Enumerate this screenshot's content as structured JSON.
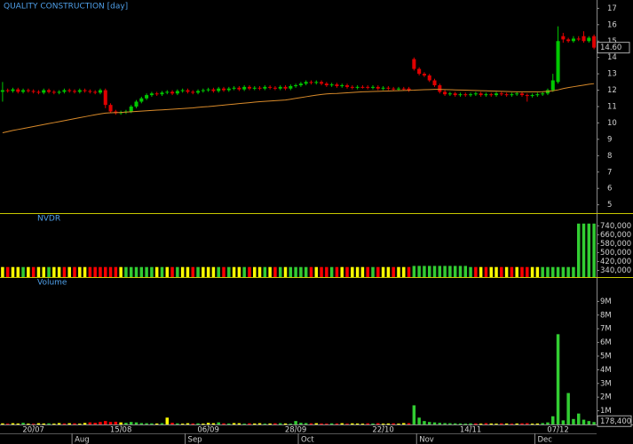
{
  "chart_data": [
    {
      "type": "candlestick",
      "title": "QUALITY CONSTRUCTION [day]",
      "up_color": "#00c800",
      "down_color": "#e00000",
      "ma_color": "#d88a2a",
      "ylim": [
        4.6,
        17.4
      ],
      "yticks": [
        5,
        6,
        7,
        8,
        9,
        10,
        11,
        12,
        13,
        14,
        15,
        16,
        17
      ],
      "price_marker": {
        "value": 14.6,
        "label": "14.60"
      },
      "open": [
        11.9,
        12.0,
        11.95,
        12.05,
        11.9,
        12.0,
        11.95,
        11.9,
        11.85,
        12.0,
        11.9,
        11.85,
        11.9,
        12.0,
        11.95,
        11.9,
        12.0,
        11.95,
        11.9,
        11.85,
        12.0,
        11.1,
        10.7,
        10.6,
        10.65,
        10.7,
        11.0,
        11.3,
        11.5,
        11.7,
        11.8,
        11.75,
        11.85,
        11.9,
        11.8,
        11.95,
        12.0,
        11.9,
        11.85,
        11.95,
        12.0,
        12.05,
        11.95,
        12.1,
        12.0,
        12.1,
        12.15,
        12.05,
        12.2,
        12.1,
        12.15,
        12.1,
        12.2,
        12.15,
        12.1,
        12.2,
        12.1,
        12.25,
        12.3,
        12.4,
        12.5,
        12.45,
        12.5,
        12.4,
        12.3,
        12.35,
        12.25,
        12.3,
        12.2,
        12.15,
        12.2,
        12.2,
        12.15,
        12.2,
        12.1,
        12.15,
        12.1,
        12.05,
        12.1,
        12.1,
        13.9,
        13.3,
        13.0,
        12.9,
        12.6,
        12.3,
        11.9,
        11.75,
        11.8,
        11.7,
        11.75,
        11.7,
        11.75,
        11.8,
        11.7,
        11.75,
        11.7,
        11.8,
        11.75,
        11.7,
        11.75,
        11.8,
        11.7,
        11.65,
        11.7,
        11.75,
        11.8,
        12.0,
        12.5,
        15.3,
        15.1,
        15.0,
        15.15,
        15.3,
        15.0,
        15.3
      ],
      "high": [
        12.5,
        12.1,
        12.15,
        12.15,
        12.1,
        12.1,
        12.05,
        12.0,
        12.1,
        12.1,
        12.0,
        12.0,
        12.1,
        12.1,
        12.05,
        12.1,
        12.1,
        12.05,
        12.0,
        12.1,
        12.1,
        11.2,
        10.8,
        10.75,
        10.8,
        11.1,
        11.4,
        11.6,
        11.8,
        11.9,
        11.9,
        11.95,
        12.0,
        12.0,
        12.05,
        12.1,
        12.1,
        12.0,
        12.05,
        12.1,
        12.15,
        12.15,
        12.2,
        12.2,
        12.2,
        12.25,
        12.25,
        12.3,
        12.3,
        12.25,
        12.25,
        12.3,
        12.3,
        12.25,
        12.3,
        12.3,
        12.35,
        12.4,
        12.5,
        12.6,
        12.6,
        12.6,
        12.6,
        12.5,
        12.45,
        12.45,
        12.4,
        12.4,
        12.3,
        12.3,
        12.3,
        12.3,
        12.3,
        12.3,
        12.25,
        12.25,
        12.2,
        12.2,
        12.2,
        12.2,
        14.0,
        13.4,
        13.1,
        13.0,
        12.7,
        12.4,
        12.0,
        11.9,
        11.9,
        11.85,
        11.85,
        11.85,
        11.9,
        11.9,
        11.85,
        11.85,
        11.9,
        11.9,
        11.85,
        11.85,
        11.9,
        11.9,
        11.8,
        11.8,
        11.85,
        11.9,
        12.1,
        13.0,
        15.9,
        15.5,
        15.2,
        15.3,
        15.3,
        15.6,
        15.3,
        15.4
      ],
      "low": [
        11.3,
        11.85,
        11.85,
        11.8,
        11.8,
        11.85,
        11.8,
        11.75,
        11.75,
        11.8,
        11.75,
        11.75,
        11.8,
        11.85,
        11.8,
        11.8,
        11.85,
        11.8,
        11.75,
        11.75,
        10.9,
        10.6,
        10.5,
        10.5,
        10.55,
        10.6,
        10.9,
        11.2,
        11.4,
        11.6,
        11.65,
        11.65,
        11.75,
        11.7,
        11.7,
        11.85,
        11.8,
        11.75,
        11.75,
        11.85,
        11.9,
        11.85,
        11.85,
        11.9,
        11.9,
        12.0,
        11.95,
        11.95,
        12.0,
        12.0,
        12.0,
        12.0,
        12.05,
        12.0,
        12.0,
        12.0,
        12.0,
        12.15,
        12.2,
        12.3,
        12.35,
        12.35,
        12.3,
        12.2,
        12.2,
        12.15,
        12.15,
        12.1,
        12.05,
        12.05,
        12.1,
        12.05,
        12.05,
        12.0,
        12.0,
        12.0,
        11.95,
        11.95,
        12.0,
        11.9,
        13.2,
        12.9,
        12.8,
        12.5,
        12.2,
        11.8,
        11.65,
        11.65,
        11.6,
        11.6,
        11.6,
        11.6,
        11.65,
        11.6,
        11.6,
        11.6,
        11.6,
        11.65,
        11.6,
        11.6,
        11.65,
        11.6,
        11.3,
        11.55,
        11.6,
        11.65,
        11.7,
        11.9,
        12.4,
        14.9,
        14.9,
        14.9,
        15.0,
        14.9,
        14.9,
        14.5
      ],
      "close": [
        12.0,
        11.95,
        12.05,
        11.9,
        12.0,
        11.95,
        11.9,
        11.85,
        12.0,
        11.9,
        11.85,
        11.9,
        12.0,
        11.95,
        11.9,
        12.0,
        11.95,
        11.9,
        11.85,
        12.0,
        11.1,
        10.7,
        10.6,
        10.65,
        10.7,
        11.0,
        11.3,
        11.5,
        11.7,
        11.8,
        11.75,
        11.85,
        11.9,
        11.8,
        11.95,
        12.0,
        11.9,
        11.85,
        11.95,
        12.0,
        12.05,
        11.95,
        12.1,
        12.0,
        12.1,
        12.15,
        12.05,
        12.2,
        12.1,
        12.15,
        12.1,
        12.2,
        12.15,
        12.1,
        12.2,
        12.1,
        12.25,
        12.3,
        12.4,
        12.5,
        12.45,
        12.5,
        12.4,
        12.3,
        12.35,
        12.25,
        12.3,
        12.2,
        12.15,
        12.2,
        12.2,
        12.15,
        12.2,
        12.1,
        12.15,
        12.1,
        12.05,
        12.1,
        12.1,
        12.0,
        13.3,
        13.0,
        12.9,
        12.6,
        12.3,
        11.9,
        11.75,
        11.8,
        11.7,
        11.75,
        11.7,
        11.75,
        11.8,
        11.7,
        11.75,
        11.7,
        11.8,
        11.75,
        11.7,
        11.75,
        11.8,
        11.7,
        11.65,
        11.7,
        11.75,
        11.8,
        12.0,
        12.6,
        15.0,
        15.1,
        15.0,
        15.15,
        15.1,
        15.0,
        15.2,
        14.6
      ],
      "ma": [
        9.4,
        9.47,
        9.54,
        9.6,
        9.66,
        9.72,
        9.78,
        9.84,
        9.9,
        9.96,
        10.02,
        10.08,
        10.14,
        10.2,
        10.26,
        10.32,
        10.38,
        10.44,
        10.5,
        10.55,
        10.6,
        10.62,
        10.63,
        10.64,
        10.66,
        10.68,
        10.7,
        10.72,
        10.74,
        10.76,
        10.78,
        10.8,
        10.82,
        10.84,
        10.86,
        10.88,
        10.9,
        10.92,
        10.95,
        10.98,
        11.0,
        11.03,
        11.06,
        11.09,
        11.12,
        11.15,
        11.18,
        11.21,
        11.24,
        11.27,
        11.3,
        11.32,
        11.34,
        11.36,
        11.38,
        11.4,
        11.45,
        11.5,
        11.55,
        11.6,
        11.65,
        11.7,
        11.74,
        11.77,
        11.79,
        11.8,
        11.82,
        11.84,
        11.86,
        11.88,
        11.9,
        11.91,
        11.92,
        11.93,
        11.94,
        11.95,
        11.96,
        11.97,
        11.98,
        11.99,
        12.0,
        12.02,
        12.03,
        12.04,
        12.05,
        12.05,
        12.04,
        12.03,
        12.02,
        12.01,
        12.0,
        11.99,
        11.98,
        11.97,
        11.96,
        11.95,
        11.94,
        11.93,
        11.92,
        11.91,
        11.9,
        11.9,
        11.9,
        11.9,
        11.9,
        11.91,
        11.93,
        11.96,
        12.02,
        12.1,
        12.16,
        12.21,
        12.26,
        12.31,
        12.36,
        12.4
      ]
    },
    {
      "type": "bar",
      "title": "NVDR",
      "ylim": [
        280000,
        830000
      ],
      "yticks": [
        {
          "value": 340000,
          "label": "340,000"
        },
        {
          "value": 420000,
          "label": "420,000"
        },
        {
          "value": 500000,
          "label": "500,000"
        },
        {
          "value": 580000,
          "label": "580,000"
        },
        {
          "value": 660000,
          "label": "660,000"
        },
        {
          "value": 740000,
          "label": "740,000"
        }
      ],
      "values": [
        370000,
        370000,
        370000,
        370000,
        370000,
        370000,
        370000,
        370000,
        370000,
        370000,
        370000,
        370000,
        370000,
        370000,
        370000,
        370000,
        370000,
        370000,
        370000,
        370000,
        370000,
        370000,
        370000,
        370000,
        370000,
        370000,
        370000,
        370000,
        370000,
        370000,
        370000,
        370000,
        370000,
        370000,
        370000,
        370000,
        370000,
        370000,
        370000,
        370000,
        370000,
        370000,
        370000,
        370000,
        370000,
        370000,
        370000,
        370000,
        370000,
        370000,
        370000,
        370000,
        370000,
        370000,
        370000,
        370000,
        370000,
        370000,
        370000,
        370000,
        370000,
        370000,
        370000,
        370000,
        370000,
        370000,
        370000,
        370000,
        370000,
        370000,
        370000,
        370000,
        370000,
        370000,
        370000,
        370000,
        370000,
        370000,
        370000,
        370000,
        380000,
        380000,
        380000,
        380000,
        380000,
        380000,
        380000,
        380000,
        380000,
        380000,
        380000,
        370000,
        370000,
        370000,
        370000,
        370000,
        370000,
        370000,
        370000,
        370000,
        370000,
        370000,
        370000,
        370000,
        370000,
        370000,
        370000,
        370000,
        370000,
        370000,
        370000,
        370000,
        760000,
        760000,
        760000,
        760000
      ],
      "colors": [
        "yellow",
        "red",
        "yellow",
        "yellow",
        "limegreen",
        "yellow",
        "red",
        "yellow",
        "yellow",
        "limegreen",
        "yellow",
        "yellow",
        "red",
        "yellow",
        "red",
        "yellow",
        "yellow",
        "red",
        "red",
        "red",
        "red",
        "red",
        "red",
        "yellow",
        "limegreen",
        "limegreen",
        "limegreen",
        "limegreen",
        "limegreen",
        "limegreen",
        "yellow",
        "limegreen",
        "yellow",
        "red",
        "limegreen",
        "yellow",
        "yellow",
        "red",
        "limegreen",
        "yellow",
        "yellow",
        "yellow",
        "limegreen",
        "red",
        "limegreen",
        "yellow",
        "yellow",
        "limegreen",
        "red",
        "yellow",
        "yellow",
        "limegreen",
        "yellow",
        "red",
        "limegreen",
        "yellow",
        "limegreen",
        "limegreen",
        "limegreen",
        "limegreen",
        "red",
        "yellow",
        "red",
        "red",
        "limegreen",
        "red",
        "yellow",
        "red",
        "yellow",
        "yellow",
        "yellow",
        "red",
        "limegreen",
        "red",
        "yellow",
        "yellow",
        "red",
        "yellow",
        "yellow",
        "red",
        "limegreen",
        "limegreen",
        "limegreen",
        "limegreen",
        "limegreen",
        "limegreen",
        "limegreen",
        "limegreen",
        "limegreen",
        "limegreen",
        "limegreen",
        "limegreen",
        "red",
        "yellow",
        "red",
        "yellow",
        "yellow",
        "red",
        "yellow",
        "red",
        "yellow",
        "red",
        "red",
        "yellow",
        "yellow",
        "limegreen",
        "limegreen",
        "limegreen",
        "limegreen",
        "limegreen",
        "limegreen",
        "limegreen",
        "limegreen",
        "limegreen",
        "limegreen",
        "limegreen"
      ]
    },
    {
      "type": "bar",
      "title": "Volume",
      "ylim": [
        0,
        10000000
      ],
      "yticks": [
        {
          "value": 1000000,
          "label": "1M"
        },
        {
          "value": 2000000,
          "label": "2M"
        },
        {
          "value": 3000000,
          "label": "3M"
        },
        {
          "value": 4000000,
          "label": "4M"
        },
        {
          "value": 5000000,
          "label": "5M"
        },
        {
          "value": 6000000,
          "label": "6M"
        },
        {
          "value": 7000000,
          "label": "7M"
        },
        {
          "value": 8000000,
          "label": "8M"
        },
        {
          "value": 9000000,
          "label": "9M"
        }
      ],
      "marker": {
        "value": 178400,
        "label": "178,400"
      },
      "xlim": [
        -0.5,
        115.5
      ],
      "xticks": [
        {
          "value": 6,
          "label": "20/07"
        },
        {
          "value": 23,
          "label": "15/08"
        },
        {
          "value": 40,
          "label": "06/09"
        },
        {
          "value": 57,
          "label": "28/09"
        },
        {
          "value": 74,
          "label": "22/10"
        },
        {
          "value": 91,
          "label": "14/11"
        },
        {
          "value": 108,
          "label": "07/12"
        }
      ],
      "xticks_month": [
        {
          "value": 13.5,
          "label": "Aug"
        },
        {
          "value": 35.5,
          "label": "Sep"
        },
        {
          "value": 57.5,
          "label": "Oct"
        },
        {
          "value": 80.5,
          "label": "Nov"
        },
        {
          "value": 103.5,
          "label": "Dec"
        }
      ],
      "values": [
        80000,
        60000,
        90000,
        70000,
        120000,
        60000,
        50000,
        90000,
        70000,
        80000,
        60000,
        100000,
        70000,
        90000,
        80000,
        60000,
        110000,
        150000,
        120000,
        180000,
        250000,
        180000,
        200000,
        150000,
        120000,
        180000,
        150000,
        100000,
        90000,
        80000,
        70000,
        90000,
        500000,
        120000,
        80000,
        60000,
        90000,
        70000,
        80000,
        60000,
        120000,
        90000,
        150000,
        80000,
        70000,
        100000,
        90000,
        60000,
        80000,
        70000,
        90000,
        60000,
        70000,
        80000,
        90000,
        70000,
        60000,
        250000,
        120000,
        100000,
        80000,
        90000,
        70000,
        60000,
        80000,
        70000,
        90000,
        60000,
        80000,
        70000,
        60000,
        80000,
        70000,
        90000,
        60000,
        70000,
        80000,
        60000,
        100000,
        90000,
        1400000,
        500000,
        250000,
        180000,
        150000,
        120000,
        100000,
        90000,
        80000,
        70000,
        60000,
        80000,
        70000,
        60000,
        90000,
        70000,
        60000,
        80000,
        70000,
        60000,
        70000,
        80000,
        90000,
        60000,
        70000,
        100000,
        150000,
        600000,
        6600000,
        300000,
        2300000,
        400000,
        800000,
        350000,
        250000,
        178400
      ]
    }
  ]
}
